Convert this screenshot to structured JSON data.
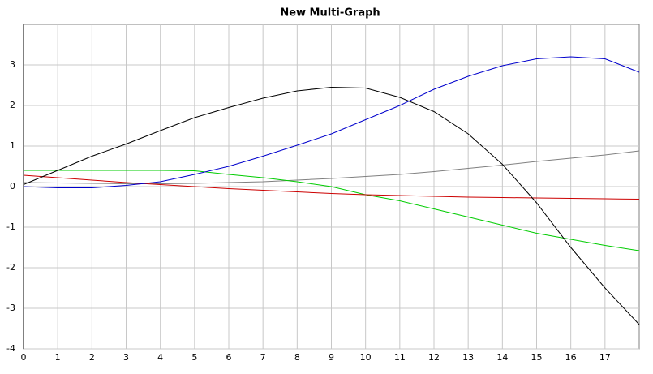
{
  "chart_data": {
    "type": "line",
    "title": "New Multi-Graph",
    "x": [
      0,
      1,
      2,
      3,
      4,
      5,
      6,
      7,
      8,
      9,
      10,
      11,
      12,
      13,
      14,
      15,
      16,
      17,
      18
    ],
    "xlim": [
      0,
      18
    ],
    "xticks": [
      0,
      1,
      2,
      3,
      4,
      5,
      6,
      7,
      8,
      9,
      10,
      11,
      12,
      13,
      14,
      15,
      16,
      17
    ],
    "ylim": [
      -4,
      4
    ],
    "yticks": [
      -4,
      -3,
      -2,
      -1,
      0,
      1,
      2,
      3
    ],
    "grid": true,
    "series": [
      {
        "color": "#808080",
        "values": [
          0.1,
          0.09,
          0.08,
          0.07,
          0.07,
          0.08,
          0.1,
          0.12,
          0.16,
          0.2,
          0.25,
          0.3,
          0.37,
          0.45,
          0.53,
          0.62,
          0.7,
          0.78,
          0.88
        ]
      },
      {
        "color": "#00cc00",
        "values": [
          0.4,
          0.4,
          0.4,
          0.4,
          0.4,
          0.39,
          0.3,
          0.22,
          0.12,
          0.0,
          -0.2,
          -0.35,
          -0.55,
          -0.75,
          -0.95,
          -1.15,
          -1.3,
          -1.45,
          -1.58
        ]
      },
      {
        "color": "#cc0000",
        "values": [
          0.28,
          0.22,
          0.16,
          0.1,
          0.05,
          0.0,
          -0.05,
          -0.09,
          -0.13,
          -0.17,
          -0.2,
          -0.22,
          -0.24,
          -0.26,
          -0.27,
          -0.28,
          -0.29,
          -0.3,
          -0.31
        ]
      },
      {
        "color": "#0000cc",
        "values": [
          0,
          -0.03,
          -0.03,
          0.03,
          0.12,
          0.3,
          0.5,
          0.75,
          1.02,
          1.3,
          1.65,
          2.0,
          2.4,
          2.72,
          2.98,
          3.15,
          3.2,
          3.15,
          2.82
        ]
      },
      {
        "color": "#000000",
        "values": [
          0.05,
          0.4,
          0.75,
          1.05,
          1.38,
          1.7,
          1.95,
          2.18,
          2.36,
          2.45,
          2.43,
          2.2,
          1.85,
          1.3,
          0.55,
          -0.4,
          -1.5,
          -2.5,
          -3.4
        ]
      }
    ]
  }
}
